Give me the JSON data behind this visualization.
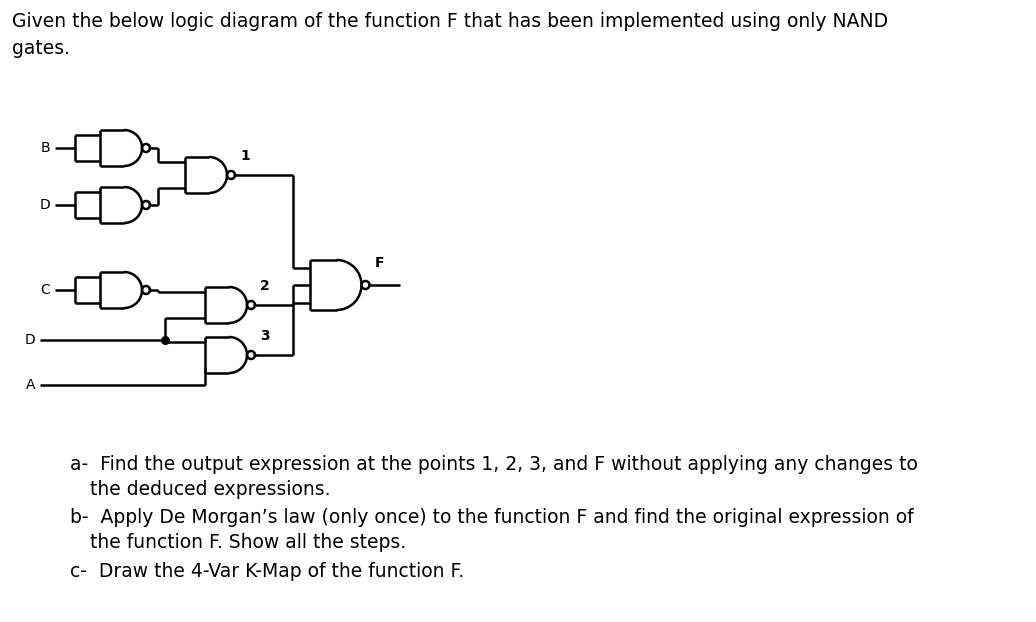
{
  "title_text": "Given the below logic diagram of the function F that has been implemented using only NAND\ngates.",
  "question_a": "a-  Find the output expression at the points 1, 2, 3, and F without applying any changes to\n      the deduced expressions.",
  "question_b": "b-  Apply De Morgan’s law (only once) to the function F and find the original expression of\n      the function F. Show all the steps.",
  "question_c": "c-  Draw the 4-Var K-Map of the function F.",
  "bg_color": "#ffffff",
  "text_color": "#000000",
  "font_size_title": 13.5,
  "font_size_body": 13.5,
  "gate_lw": 1.8,
  "wire_lw": 1.8
}
